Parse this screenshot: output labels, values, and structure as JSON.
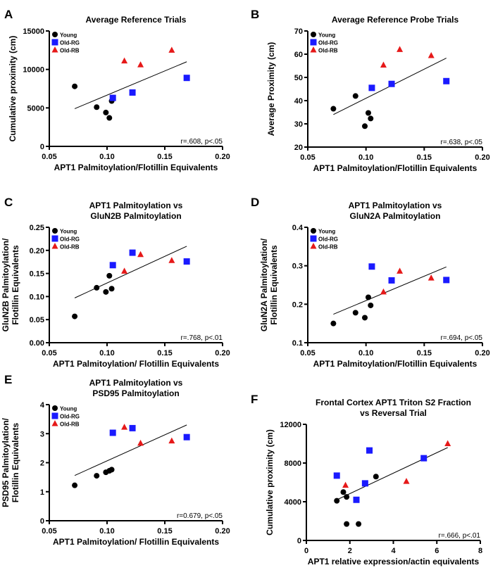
{
  "legend": [
    "Young",
    "Old-RG",
    "Old-RB"
  ],
  "colors": {
    "Young": "#000000",
    "Old-RG": "#1a1aff",
    "Old-RB": "#e61919"
  },
  "chart_data": [
    {
      "type": "scatter",
      "panel": "A",
      "title": [
        "Average Reference Trials"
      ],
      "xlabel": "APT1 Palmitoylation/Flotillin Equivalents",
      "ylabel": [
        "Cumulative proximity (cm)"
      ],
      "xlim": [
        0.05,
        0.2
      ],
      "ylim": [
        0,
        15000
      ],
      "xticks": [
        "0.05",
        "0.10",
        "0.15",
        "0.20"
      ],
      "yticks": [
        "0",
        "5000",
        "10000",
        "15000"
      ],
      "stat": "r=.608, p<.05",
      "series": [
        {
          "name": "Young",
          "x": [
            0.072,
            0.091,
            0.099,
            0.102,
            0.104
          ],
          "y": [
            7800,
            5100,
            4400,
            3700,
            5900
          ]
        },
        {
          "name": "Old-RG",
          "x": [
            0.105,
            0.122,
            0.169
          ],
          "y": [
            6300,
            7000,
            8900
          ]
        },
        {
          "name": "Old-RB",
          "x": [
            0.115,
            0.129,
            0.156
          ],
          "y": [
            11100,
            10600,
            12500
          ]
        }
      ],
      "fit": [
        [
          0.072,
          4900
        ],
        [
          0.169,
          11000
        ]
      ]
    },
    {
      "type": "scatter",
      "panel": "B",
      "title": [
        "Average Reference Probe Trials"
      ],
      "xlabel": "APT1 Palmitoylation/Flotillin Equivalents",
      "ylabel": [
        "Average Proximity (cm)"
      ],
      "xlim": [
        0.05,
        0.2
      ],
      "ylim": [
        20,
        70
      ],
      "xticks": [
        "0.05",
        "0.10",
        "0.15",
        "0.20"
      ],
      "yticks": [
        "20",
        "30",
        "40",
        "50",
        "60",
        "70"
      ],
      "stat": "r=.638, p<.05",
      "series": [
        {
          "name": "Young",
          "x": [
            0.072,
            0.091,
            0.099,
            0.102,
            0.104
          ],
          "y": [
            36.5,
            42,
            29,
            34.7,
            32.3
          ]
        },
        {
          "name": "Old-RG",
          "x": [
            0.105,
            0.122,
            0.169
          ],
          "y": [
            45.5,
            47.2,
            48.4
          ]
        },
        {
          "name": "Old-RB",
          "x": [
            0.115,
            0.129,
            0.156
          ],
          "y": [
            55.3,
            62,
            59.4
          ]
        }
      ],
      "fit": [
        [
          0.072,
          34
        ],
        [
          0.169,
          58.3
        ]
      ]
    },
    {
      "type": "scatter",
      "panel": "C",
      "title": [
        "APT1 Palmitoylation vs",
        "GluN2B Palmitoylation"
      ],
      "xlabel": "APT1 Palmitoylation/ Flotillin Equivalents",
      "ylabel": [
        "GluN2B Palmitoylation/",
        "Flotillin Equivalents"
      ],
      "xlim": [
        0.05,
        0.2
      ],
      "ylim": [
        0,
        0.25
      ],
      "xticks": [
        "0.05",
        "0.10",
        "0.15",
        "0.20"
      ],
      "yticks": [
        "0.00",
        "0.05",
        "0.10",
        "0.15",
        "0.20",
        "0.25"
      ],
      "stat": "r=.768, p<.01",
      "series": [
        {
          "name": "Young",
          "x": [
            0.072,
            0.091,
            0.099,
            0.102,
            0.104
          ],
          "y": [
            0.057,
            0.119,
            0.11,
            0.145,
            0.117
          ]
        },
        {
          "name": "Old-RG",
          "x": [
            0.105,
            0.122,
            0.169
          ],
          "y": [
            0.168,
            0.195,
            0.176
          ]
        },
        {
          "name": "Old-RB",
          "x": [
            0.115,
            0.129,
            0.156
          ],
          "y": [
            0.155,
            0.191,
            0.178
          ]
        }
      ],
      "fit": [
        [
          0.072,
          0.097
        ],
        [
          0.169,
          0.209
        ]
      ]
    },
    {
      "type": "scatter",
      "panel": "D",
      "title": [
        "APT1 Palmitoylation vs",
        "GluN2A Palmitoylation"
      ],
      "xlabel": "APT1 Palmitoylation/Flotillin Equivalents",
      "ylabel": [
        "GluN2A Palmitoylation/",
        "Flotillin Equivalents"
      ],
      "xlim": [
        0.05,
        0.2
      ],
      "ylim": [
        0.1,
        0.4
      ],
      "xticks": [
        "0.05",
        "0.10",
        "0.15",
        "0.20"
      ],
      "yticks": [
        "0.1",
        "0.2",
        "0.3",
        "0.4"
      ],
      "stat": "r=.694, p<.05",
      "series": [
        {
          "name": "Young",
          "x": [
            0.072,
            0.091,
            0.099,
            0.102,
            0.104
          ],
          "y": [
            0.15,
            0.178,
            0.165,
            0.218,
            0.197
          ]
        },
        {
          "name": "Old-RG",
          "x": [
            0.105,
            0.122,
            0.169
          ],
          "y": [
            0.298,
            0.262,
            0.263
          ]
        },
        {
          "name": "Old-RB",
          "x": [
            0.115,
            0.129,
            0.156
          ],
          "y": [
            0.232,
            0.286,
            0.268
          ]
        }
      ],
      "fit": [
        [
          0.072,
          0.174
        ],
        [
          0.169,
          0.297
        ]
      ]
    },
    {
      "type": "scatter",
      "panel": "E",
      "title": [
        "APT1 Palmitoylation vs",
        "PSD95 Palmitoylation"
      ],
      "xlabel": "APT1 Palmitoylation/ Flotillin Equivalents",
      "ylabel": [
        "PSD95 Palmitoylation/",
        "Flotillin Equivalents"
      ],
      "xlim": [
        0.05,
        0.2
      ],
      "ylim": [
        0,
        4
      ],
      "xticks": [
        "0.05",
        "0.10",
        "0.15",
        "0.20"
      ],
      "yticks": [
        "0",
        "1",
        "2",
        "3",
        "4"
      ],
      "stat": "r=0.679, p<.05",
      "series": [
        {
          "name": "Young",
          "x": [
            0.072,
            0.091,
            0.099,
            0.102,
            0.104
          ],
          "y": [
            1.22,
            1.55,
            1.67,
            1.72,
            1.76
          ]
        },
        {
          "name": "Old-RG",
          "x": [
            0.105,
            0.122,
            0.169
          ],
          "y": [
            3.03,
            3.19,
            2.88
          ]
        },
        {
          "name": "Old-RB",
          "x": [
            0.115,
            0.129,
            0.156
          ],
          "y": [
            3.22,
            2.67,
            2.75
          ]
        }
      ],
      "fit": [
        [
          0.072,
          1.56
        ],
        [
          0.169,
          3.3
        ]
      ]
    },
    {
      "type": "scatter",
      "panel": "F",
      "title": [
        "Frontal Cortex APT1 Triton S2 Fraction",
        "vs Reversal Trial"
      ],
      "xlabel": "APT1 relative expression/actin equivalents",
      "ylabel": [
        "Cumulative proximity (cm)"
      ],
      "xlim": [
        0,
        8
      ],
      "ylim": [
        0,
        12000
      ],
      "xticks": [
        "0",
        "2",
        "4",
        "6",
        "8"
      ],
      "yticks": [
        "0",
        "4000",
        "8000",
        "12000"
      ],
      "stat": "r=.666, p<.01",
      "series": [
        {
          "name": "Young",
          "x": [
            1.4,
            1.7,
            1.85,
            1.85,
            2.4,
            3.2
          ],
          "y": [
            4100,
            5000,
            4500,
            1700,
            1700,
            6600
          ]
        },
        {
          "name": "Old-RG",
          "x": [
            1.4,
            2.3,
            2.7,
            2.9,
            5.4
          ],
          "y": [
            6700,
            4200,
            5900,
            9300,
            8500
          ]
        },
        {
          "name": "Old-RB",
          "x": [
            1.8,
            4.6,
            6.5
          ],
          "y": [
            5700,
            6100,
            10000
          ]
        }
      ],
      "fit": [
        [
          1.4,
          4200
        ],
        [
          6.5,
          9600
        ]
      ]
    }
  ]
}
